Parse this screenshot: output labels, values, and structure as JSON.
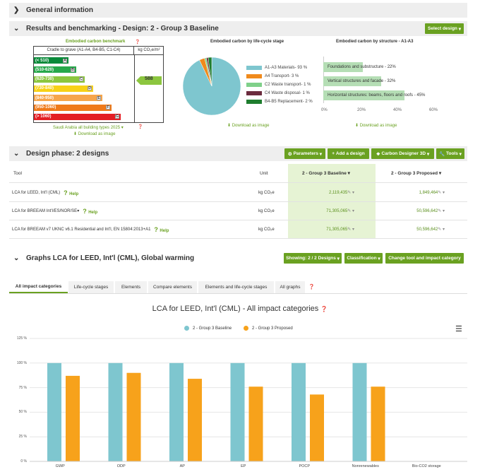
{
  "general_info": {
    "title": "General information"
  },
  "results": {
    "title": "Results and benchmarking - Design: 2 - Group 3 Baseline",
    "select_design": "Select design"
  },
  "benchmark": {
    "title": "Embodied carbon benchmark",
    "col_header": "Cradle to grave (A1-A4, B4-B5, C1-C4)",
    "unit_header": "kg CO₂e/m²",
    "bands": [
      {
        "label": "(< 510)",
        "letter": "A",
        "color": "#0a8a3a"
      },
      {
        "label": "(510-620)",
        "letter": "B",
        "color": "#27a84b"
      },
      {
        "label": "(620-730)",
        "letter": "C",
        "color": "#8cc63f"
      },
      {
        "label": "(730-840)",
        "letter": "D",
        "color": "#f7d117"
      },
      {
        "label": "(840-950)",
        "letter": "E",
        "color": "#f6a54b"
      },
      {
        "label": "(950-1060)",
        "letter": "F",
        "color": "#ef7a1a"
      },
      {
        "label": "(> 1060)",
        "letter": "G",
        "color": "#e31e24"
      }
    ],
    "value": "588",
    "footer": "Saudi Arabia all building types 2025",
    "download": "Download as image"
  },
  "lifecycle": {
    "title": "Embodied carbon by life-cycle stage",
    "legend": [
      {
        "label": "A1-A3 Materials- 93 %",
        "color": "#7ec6cf",
        "value": 93
      },
      {
        "label": "A4 Transport- 3 %",
        "color": "#f08a1c",
        "value": 3
      },
      {
        "label": "C2 Waste transport- 1 %",
        "color": "#7fd08a",
        "value": 1
      },
      {
        "label": "C4 Waste disposal- 1 %",
        "color": "#6b2c3e",
        "value": 1
      },
      {
        "label": "B4-B5 Replacement- 2 %",
        "color": "#1e7d2e",
        "value": 2
      }
    ],
    "download": "Download as image"
  },
  "structure": {
    "title": "Embodied carbon by structure - A1-A3",
    "bars": [
      {
        "label": "Foundations and substructure - 22%",
        "value": 22
      },
      {
        "label": "Vertical structures and facade - 32%",
        "value": 32
      },
      {
        "label": "Horizontal structures: beams, floors and roofs - 45%",
        "value": 45
      }
    ],
    "ticks": [
      "0%",
      "20%",
      "40%",
      "60%"
    ],
    "download": "Download as image"
  },
  "design_phase": {
    "title": "Design phase: 2 designs",
    "buttons": {
      "parameters": "Parameters",
      "add": "Add a design",
      "carbon": "Carbon Designer 3D",
      "tools": "Tools"
    },
    "headers": {
      "tool": "Tool",
      "unit": "Unit",
      "d1": "2 - Group 3 Baseline",
      "d2": "2 - Group 3 Proposed"
    },
    "rows": [
      {
        "tool": "LCA for LEED, Int'l (CML)",
        "help": "Help",
        "unit": "kg CO₂e",
        "v1": "2,119,435",
        "v2": "1,849,464"
      },
      {
        "tool": "LCA for BREEAM Int'l/ES/NOR/SE",
        "help": "Help",
        "unit": "kg CO₂e",
        "v1": "71,305,065",
        "v2": "50,596,642"
      },
      {
        "tool": "LCA for BREEAM v7 UKNC v6.1 Residential and Int'l, EN 15804:2013+A1",
        "help": "Help",
        "unit": "kg CO₂e",
        "v1": "71,305,065",
        "v2": "50,596,642"
      }
    ]
  },
  "graphs": {
    "title": "Graphs LCA for LEED, Int'l (CML), Global warming",
    "buttons": {
      "showing": "Showing: 2 / 2 Designs",
      "classification": "Classification",
      "change": "Change tool and impact category"
    },
    "tabs": [
      "All impact categories",
      "Life-cycle stages",
      "Elements",
      "Compare elements",
      "Elements and life-cycle stages",
      "All graphs"
    ]
  },
  "chart_data": {
    "type": "bar",
    "title": "LCA for LEED, Int'l (CML) - All impact categories",
    "categories": [
      "GWP",
      "ODP",
      "AP",
      "EP",
      "POCP",
      "Nonrenewables",
      "Bio-CO2 storage"
    ],
    "series": [
      {
        "name": "2 - Group 3 Baseline",
        "color": "#7ec6cf",
        "values": [
          100,
          100,
          100,
          100,
          100,
          100,
          0
        ]
      },
      {
        "name": "2 - Group 3 Proposed",
        "color": "#f7a21b",
        "values": [
          87,
          90,
          84,
          76,
          68,
          76,
          0
        ]
      }
    ],
    "y_ticks": [
      "0 %",
      "25 %",
      "50 %",
      "75 %",
      "100 %",
      "125 %"
    ],
    "ylim": [
      0,
      125
    ],
    "legend_position": "top-center",
    "grid": true
  }
}
